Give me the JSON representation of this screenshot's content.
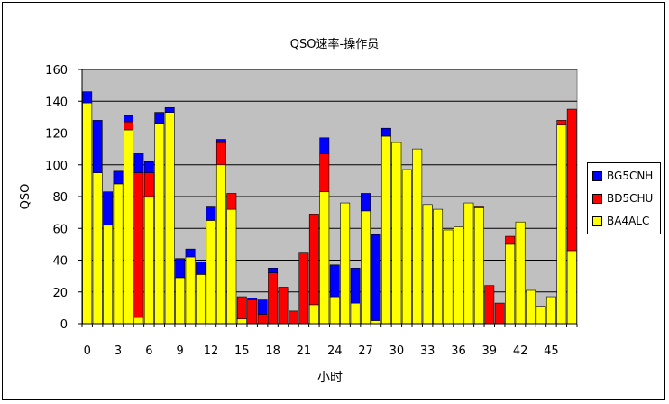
{
  "chart_data": {
    "type": "bar",
    "stacked": true,
    "title": "QSO速率-操作员",
    "xlabel": "小时",
    "ylabel": "QSO",
    "ylim": [
      0,
      160
    ],
    "yticks": [
      0,
      20,
      40,
      60,
      80,
      100,
      120,
      140,
      160
    ],
    "xtick_labels": [
      "0",
      "3",
      "6",
      "9",
      "12",
      "15",
      "18",
      "21",
      "24",
      "27",
      "30",
      "33",
      "36",
      "39",
      "42",
      "45"
    ],
    "xtick_step": 3,
    "grid": true,
    "legend_position": "right",
    "categories": [
      "0",
      "1",
      "2",
      "3",
      "4",
      "5",
      "6",
      "7",
      "8",
      "9",
      "10",
      "11",
      "12",
      "13",
      "14",
      "15",
      "16",
      "17",
      "18",
      "19",
      "20",
      "21",
      "22",
      "23",
      "24",
      "25",
      "26",
      "27",
      "28",
      "29",
      "30",
      "31",
      "32",
      "33",
      "34",
      "35",
      "36",
      "37",
      "38",
      "39",
      "40",
      "41",
      "42",
      "43",
      "44",
      "45",
      "46",
      "47"
    ],
    "series": [
      {
        "name": "BA4ALC",
        "color": "#ffff00",
        "values": [
          139,
          95,
          62,
          88,
          122,
          4,
          80,
          126,
          133,
          29,
          42,
          31,
          65,
          100,
          72,
          3,
          0,
          0,
          0,
          0,
          0,
          0,
          12,
          83,
          17,
          76,
          13,
          71,
          2,
          118,
          114,
          97,
          110,
          75,
          72,
          59,
          61,
          76,
          73,
          0,
          0,
          50,
          64,
          21,
          11,
          17,
          125,
          46
        ]
      },
      {
        "name": "BD5CHU",
        "color": "#ff0000",
        "values": [
          0,
          0,
          0,
          0,
          5,
          91,
          15,
          0,
          0,
          0,
          0,
          0,
          0,
          14,
          10,
          14,
          15,
          6,
          32,
          23,
          8,
          45,
          57,
          24,
          0,
          0,
          0,
          0,
          0,
          0,
          0,
          0,
          0,
          0,
          0,
          0,
          0,
          0,
          1,
          24,
          13,
          5,
          0,
          0,
          0,
          0,
          3,
          89
        ]
      },
      {
        "name": "BG5CNH",
        "color": "#0000ff",
        "values": [
          7,
          33,
          21,
          8,
          4,
          12,
          7,
          7,
          3,
          12,
          5,
          8,
          9,
          2,
          0,
          0,
          1,
          9,
          3,
          0,
          0,
          0,
          0,
          10,
          20,
          0,
          22,
          11,
          54,
          5,
          0,
          0,
          0,
          0,
          0,
          0,
          0,
          0,
          0,
          0,
          0,
          0,
          0,
          0,
          0,
          0,
          0,
          0
        ]
      }
    ]
  },
  "legend": {
    "items": [
      {
        "label": "BG5CNH",
        "color": "#0000ff"
      },
      {
        "label": "BD5CHU",
        "color": "#ff0000"
      },
      {
        "label": "BA4ALC",
        "color": "#ffff00"
      }
    ]
  },
  "colors": {
    "plot_background": "#c0c0c0",
    "gridline": "#000000"
  }
}
